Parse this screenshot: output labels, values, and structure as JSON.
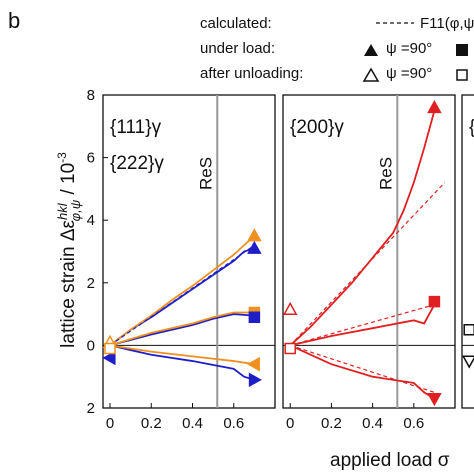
{
  "label": "b",
  "legend": {
    "calculated": "calculated:",
    "f11": "F11(φ,ψ)",
    "under_load": "under load:",
    "after_unloading": "after unloading:",
    "psi_load": "ψ =90°",
    "psi_unload": "ψ =90°"
  },
  "y_label": [
    "lattice strain Δε",
    "hkl",
    "φ,ψ",
    " / 10",
    "-3"
  ],
  "x_label": "applied load σ",
  "chart_data": [
    {
      "type": "line",
      "xlim": [
        -0.034,
        0.8
      ],
      "ylim": [
        -2,
        8
      ],
      "xticks": [
        0,
        0.2,
        0.4,
        0.6
      ],
      "yticks": [
        {
          "value": -2,
          "label": "2"
        },
        0,
        2,
        4,
        6,
        8
      ],
      "labels": [
        {
          "text": "{111}γ",
          "color": "#1f1fc8"
        },
        {
          "text": "{222}γ",
          "color": "#f0901e"
        }
      ],
      "ref_line": {
        "x": 0.52,
        "label": "ReS"
      },
      "series": [
        {
          "color": "#1f1fc8",
          "dashed": false,
          "x": [
            0,
            0.1,
            0.2,
            0.3,
            0.4,
            0.5,
            0.6,
            0.65,
            0.7
          ],
          "values": [
            0,
            0.5,
            0.9,
            1.35,
            1.8,
            2.25,
            2.7,
            3.0,
            3.1
          ]
        },
        {
          "color": "#f0901e",
          "dashed": false,
          "x": [
            0,
            0.1,
            0.2,
            0.3,
            0.4,
            0.5,
            0.6,
            0.65,
            0.7
          ],
          "values": [
            0,
            0.5,
            0.95,
            1.45,
            1.9,
            2.4,
            2.9,
            3.2,
            3.5
          ]
        },
        {
          "color": "#1f1fc8",
          "dashed": true,
          "x": [
            0,
            0.7
          ],
          "values": [
            0,
            3.2
          ]
        },
        {
          "color": "#1f1fc8",
          "dashed": false,
          "x": [
            0,
            0.2,
            0.4,
            0.5,
            0.6,
            0.7
          ],
          "values": [
            0,
            0.35,
            0.65,
            0.85,
            1.0,
            0.95
          ]
        },
        {
          "color": "#f0901e",
          "dashed": false,
          "x": [
            0,
            0.2,
            0.4,
            0.5,
            0.6,
            0.7
          ],
          "values": [
            0,
            0.4,
            0.7,
            0.9,
            1.05,
            1.05
          ]
        },
        {
          "color": "#1f1fc8",
          "dashed": false,
          "x": [
            0,
            0.2,
            0.4,
            0.6,
            0.65,
            0.7
          ],
          "values": [
            0,
            -0.3,
            -0.5,
            -0.75,
            -1.0,
            -1.1
          ]
        },
        {
          "color": "#f0901e",
          "dashed": false,
          "x": [
            0,
            0.2,
            0.4,
            0.6,
            0.7
          ],
          "values": [
            0,
            -0.2,
            -0.35,
            -0.5,
            -0.6
          ]
        }
      ],
      "markers": [
        {
          "shape": "up",
          "filled": true,
          "color": "#f0901e",
          "x": 0.7,
          "y": 3.5
        },
        {
          "shape": "up",
          "filled": true,
          "color": "#1f1fc8",
          "x": 0.7,
          "y": 3.1
        },
        {
          "shape": "square",
          "filled": true,
          "color": "#f0901e",
          "x": 0.7,
          "y": 1.05
        },
        {
          "shape": "square",
          "filled": true,
          "color": "#1f1fc8",
          "x": 0.7,
          "y": 0.9
        },
        {
          "shape": "left",
          "filled": true,
          "color": "#f0901e",
          "x": 0.7,
          "y": -0.6
        },
        {
          "shape": "right",
          "filled": true,
          "color": "#1f1fc8",
          "x": 0.7,
          "y": -1.1
        },
        {
          "shape": "left",
          "filled": true,
          "color": "#1f1fc8",
          "x": 0,
          "y": -0.4
        },
        {
          "shape": "up",
          "filled": false,
          "color": "#f0901e",
          "x": 0,
          "y": 0.1
        },
        {
          "shape": "square",
          "filled": false,
          "color": "#f0901e",
          "x": 0,
          "y": -0.1
        }
      ]
    },
    {
      "type": "line",
      "xlim": [
        -0.035,
        0.8
      ],
      "ylim": [
        -2,
        8
      ],
      "xticks": [
        0,
        0.2,
        0.4,
        0.6
      ],
      "labels": [
        {
          "text": "{200}γ",
          "color": "#e02020"
        }
      ],
      "ref_line": {
        "x": 0.52,
        "label": "ReS"
      },
      "series": [
        {
          "color": "#e02020",
          "dashed": false,
          "x": [
            0,
            0.1,
            0.2,
            0.3,
            0.4,
            0.5,
            0.55,
            0.6,
            0.65,
            0.7
          ],
          "values": [
            0,
            0.6,
            1.3,
            2.0,
            2.8,
            3.6,
            4.3,
            5.2,
            6.3,
            7.5
          ]
        },
        {
          "color": "#e02020",
          "dashed": true,
          "x": [
            0,
            0.75
          ],
          "values": [
            0,
            5.2
          ]
        },
        {
          "color": "#e02020",
          "dashed": false,
          "x": [
            0,
            0.2,
            0.4,
            0.6,
            0.65,
            0.7
          ],
          "values": [
            0,
            0.3,
            0.55,
            0.8,
            0.7,
            1.3
          ]
        },
        {
          "color": "#e02020",
          "dashed": true,
          "x": [
            0,
            0.7
          ],
          "values": [
            0,
            1.3
          ]
        },
        {
          "color": "#e02020",
          "dashed": false,
          "x": [
            0,
            0.2,
            0.4,
            0.5,
            0.6,
            0.65,
            0.7
          ],
          "values": [
            0,
            -0.6,
            -1.0,
            -1.1,
            -1.2,
            -1.5,
            -1.7
          ]
        },
        {
          "color": "#e02020",
          "dashed": true,
          "x": [
            0,
            0.7
          ],
          "values": [
            0,
            -1.5
          ]
        }
      ],
      "markers": [
        {
          "shape": "up",
          "filled": true,
          "color": "#e02020",
          "x": 0.7,
          "y": 7.6
        },
        {
          "shape": "square",
          "filled": true,
          "color": "#e02020",
          "x": 0.7,
          "y": 1.4
        },
        {
          "shape": "down",
          "filled": true,
          "color": "#e02020",
          "x": 0.7,
          "y": -1.7
        },
        {
          "shape": "up",
          "filled": false,
          "color": "#e02020",
          "x": 0,
          "y": 1.15
        },
        {
          "shape": "square",
          "filled": false,
          "color": "#e02020",
          "x": 0,
          "y": -0.1
        }
      ]
    },
    {
      "type": "line",
      "xlim": [
        -0.035,
        0.8
      ],
      "ylim": [
        -2,
        8
      ],
      "labels": [
        {
          "text": "{",
          "color": "#111111"
        }
      ],
      "series": [],
      "markers": [
        {
          "shape": "square",
          "filled": false,
          "color": "#111111",
          "x": 0,
          "y": 0.5
        },
        {
          "shape": "down",
          "filled": false,
          "color": "#111111",
          "x": 0,
          "y": -0.5
        }
      ]
    }
  ]
}
